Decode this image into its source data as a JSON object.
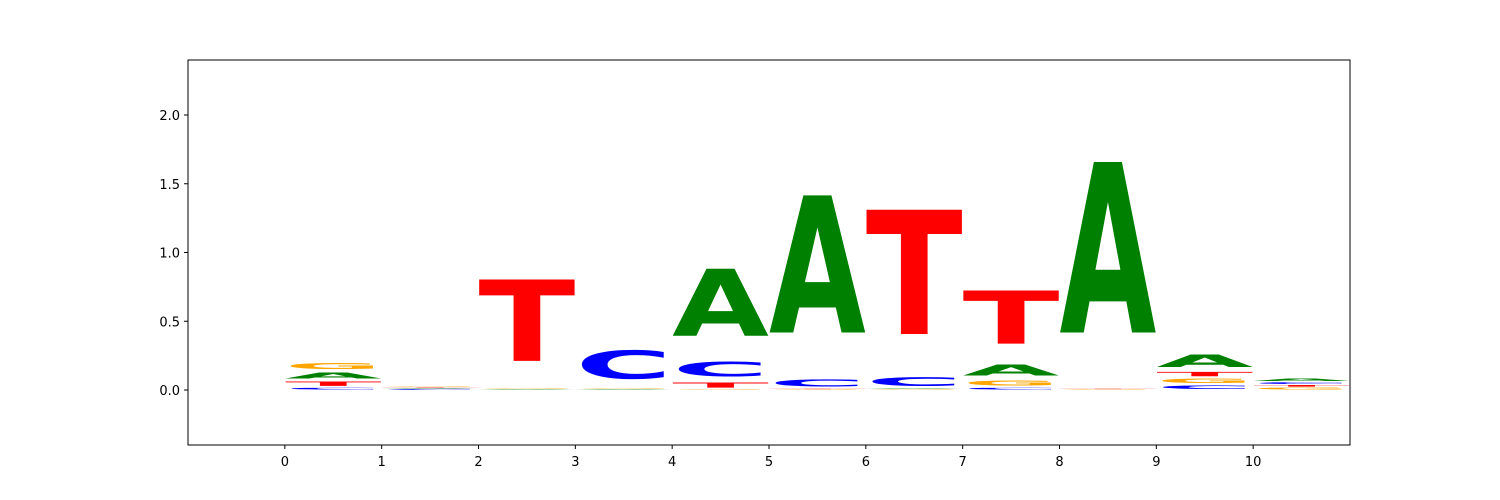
{
  "chart_data": {
    "type": "sequence-logo",
    "title": "",
    "xlabel": "",
    "ylabel": "",
    "xlim": [
      -1,
      11
    ],
    "ylim": [
      -0.4,
      2.4
    ],
    "x_ticks": [
      "0",
      "1",
      "2",
      "3",
      "4",
      "5",
      "6",
      "7",
      "8",
      "9",
      "10"
    ],
    "y_ticks": [
      "0.0",
      "0.5",
      "1.0",
      "1.5",
      "2.0"
    ],
    "y_tick_values": [
      0.0,
      0.5,
      1.0,
      1.5,
      2.0
    ],
    "grid": false,
    "legend": "none",
    "colors": {
      "A": "#008000",
      "C": "#0000ff",
      "G": "#ffa500",
      "T": "#ff0000"
    },
    "positions": [
      {
        "x_start": 0,
        "letters": [
          {
            "base": "C",
            "height": 0.02
          },
          {
            "base": "T",
            "height": 0.05
          },
          {
            "base": "A",
            "height": 0.07
          },
          {
            "base": "G",
            "height": 0.07
          }
        ]
      },
      {
        "x_start": 1,
        "letters": [
          {
            "base": "C",
            "height": 0.01
          },
          {
            "base": "A",
            "height": 0.005
          },
          {
            "base": "T",
            "height": 0.005
          },
          {
            "base": "G",
            "height": 0.01
          }
        ]
      },
      {
        "x_start": 2,
        "letters": [
          {
            "base": "C",
            "height": 0.002
          },
          {
            "base": "A",
            "height": 0.005
          },
          {
            "base": "G",
            "height": 0.01
          },
          {
            "base": "T",
            "height": 0.95
          }
        ]
      },
      {
        "x_start": 3,
        "letters": [
          {
            "base": "A",
            "height": 0.005
          },
          {
            "base": "G",
            "height": 0.01
          },
          {
            "base": "C",
            "height": 0.33
          }
        ]
      },
      {
        "x_start": 4,
        "letters": [
          {
            "base": "G",
            "height": 0.005
          },
          {
            "base": "T",
            "height": 0.06
          },
          {
            "base": "C",
            "height": 0.17
          },
          {
            "base": "A",
            "height": 0.78
          }
        ]
      },
      {
        "x_start": 5,
        "letters": [
          {
            "base": "G",
            "height": 0.005
          },
          {
            "base": "T",
            "height": 0.005
          },
          {
            "base": "C",
            "height": 0.08
          },
          {
            "base": "A",
            "height": 1.6
          }
        ]
      },
      {
        "x_start": 6,
        "letters": [
          {
            "base": "G",
            "height": 0.005
          },
          {
            "base": "A",
            "height": 0.005
          },
          {
            "base": "C",
            "height": 0.1
          },
          {
            "base": "T",
            "height": 1.45
          }
        ]
      },
      {
        "x_start": 7,
        "letters": [
          {
            "base": "C",
            "height": 0.02
          },
          {
            "base": "G",
            "height": 0.06
          },
          {
            "base": "A",
            "height": 0.13
          },
          {
            "base": "T",
            "height": 0.62
          }
        ]
      },
      {
        "x_start": 8,
        "letters": [
          {
            "base": "C",
            "height": 0.002
          },
          {
            "base": "G",
            "height": 0.003
          },
          {
            "base": "T",
            "height": 0.005
          },
          {
            "base": "A",
            "height": 1.99
          }
        ]
      },
      {
        "x_start": 9,
        "letters": [
          {
            "base": "C",
            "height": 0.04
          },
          {
            "base": "G",
            "height": 0.05
          },
          {
            "base": "T",
            "height": 0.05
          },
          {
            "base": "A",
            "height": 0.14
          }
        ]
      },
      {
        "x_start": 10,
        "letters": [
          {
            "base": "G",
            "height": 0.02
          },
          {
            "base": "T",
            "height": 0.02
          },
          {
            "base": "C",
            "height": 0.02
          },
          {
            "base": "A",
            "height": 0.03
          }
        ]
      }
    ]
  }
}
